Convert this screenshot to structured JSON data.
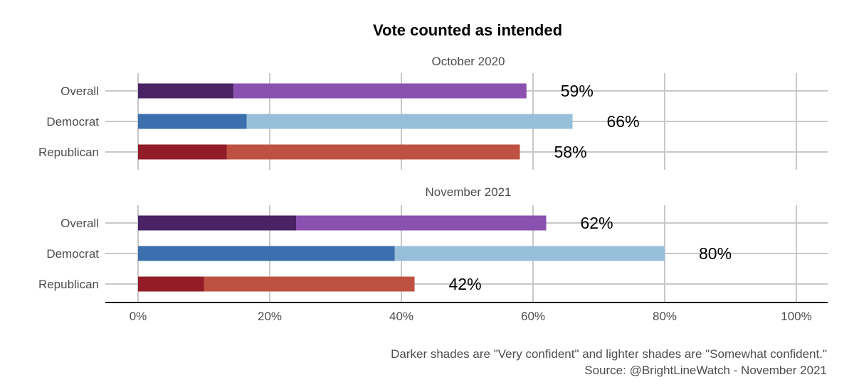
{
  "chart_data": {
    "type": "bar",
    "orientation": "horizontal",
    "stacked": true,
    "title": "Vote counted as intended",
    "xlim": [
      0,
      100
    ],
    "x_ticks": [
      "0%",
      "20%",
      "40%",
      "60%",
      "80%",
      "100%"
    ],
    "x_tick_values": [
      0,
      20,
      40,
      60,
      80,
      100
    ],
    "grid": true,
    "caption_lines": [
      "Darker shades are \"Very confident\" and lighter shades are \"Somewhat confident.\"",
      "Source: @BrightLineWatch - November 2021"
    ],
    "panels": [
      {
        "facet": "October 2020",
        "categories": [
          "Overall",
          "Democrat",
          "Republican"
        ],
        "very_confident": [
          14.5,
          16.5,
          13.5
        ],
        "somewhat_confident": [
          44.5,
          49.5,
          44.5
        ],
        "labels": [
          "59%",
          "66%",
          "58%"
        ]
      },
      {
        "facet": "November 2021",
        "categories": [
          "Overall",
          "Democrat",
          "Republican"
        ],
        "very_confident": [
          24,
          39,
          10
        ],
        "somewhat_confident": [
          38,
          41,
          32
        ],
        "labels": [
          "62%",
          "80%",
          "42%"
        ]
      }
    ],
    "colors": {
      "Overall": {
        "dark": "#4a2365",
        "light": "#8b51b0"
      },
      "Democrat": {
        "dark": "#3b6fae",
        "light": "#98bfda"
      },
      "Republican": {
        "dark": "#921c27",
        "light": "#bf5142"
      }
    },
    "grid_color": "#c8c8c8",
    "axis_color": "#000000"
  }
}
